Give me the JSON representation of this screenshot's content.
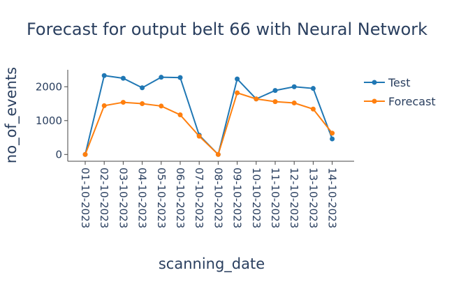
{
  "chart_data": {
    "type": "line",
    "title": "Forecast for output belt 66 with Neural Network",
    "xlabel": "scanning_date",
    "ylabel": "no_of_events",
    "categories": [
      "01-10-2023",
      "02-10-2023",
      "03-10-2023",
      "04-10-2023",
      "05-10-2023",
      "06-10-2023",
      "07-10-2023",
      "08-10-2023",
      "09-10-2023",
      "10-10-2023",
      "11-10-2023",
      "12-10-2023",
      "13-10-2023",
      "14-10-2023"
    ],
    "ylim": [
      -200,
      2500
    ],
    "yticks": [
      0,
      1000,
      2000
    ],
    "ytick_labels": [
      "0",
      "1000",
      "2000"
    ],
    "grid": false,
    "legend_position": "right",
    "series": [
      {
        "name": "Test",
        "color": "#1f77b4",
        "values": [
          0,
          2330,
          2250,
          1970,
          2280,
          2270,
          570,
          0,
          2230,
          1640,
          1890,
          2000,
          1950,
          460
        ]
      },
      {
        "name": "Forecast",
        "color": "#ff7f0e",
        "values": [
          0,
          1440,
          1540,
          1500,
          1430,
          1170,
          540,
          0,
          1820,
          1640,
          1560,
          1520,
          1340,
          630
        ]
      }
    ]
  }
}
